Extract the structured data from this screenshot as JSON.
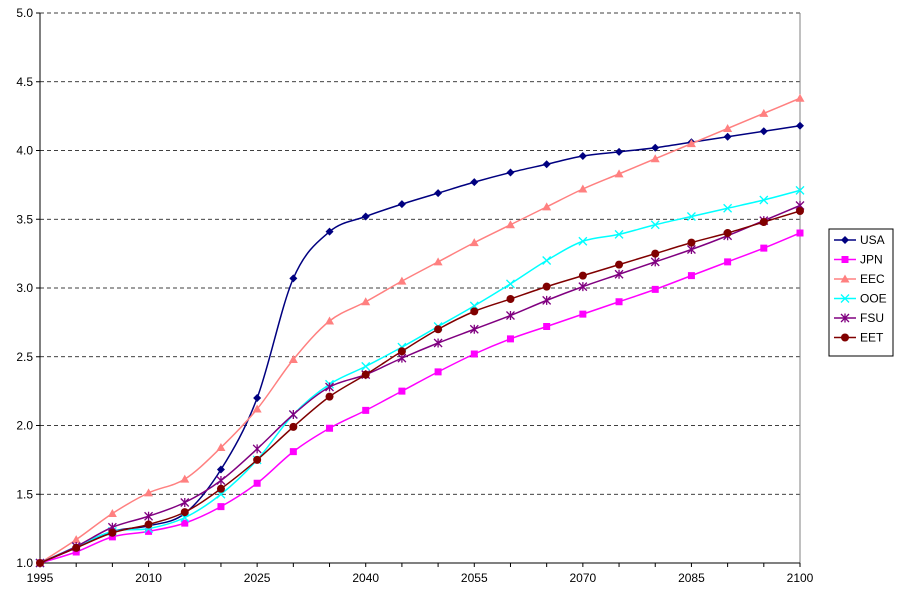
{
  "chart_data": {
    "type": "line",
    "title": "",
    "xlabel": "",
    "ylabel": "",
    "x": [
      1995,
      2000,
      2005,
      2010,
      2015,
      2020,
      2025,
      2030,
      2035,
      2040,
      2045,
      2050,
      2055,
      2060,
      2065,
      2070,
      2075,
      2080,
      2085,
      2090,
      2095,
      2100
    ],
    "x_ticks": [
      "1995",
      "2010",
      "2025",
      "2040",
      "2055",
      "2070",
      "2085",
      "2100"
    ],
    "x_tick_values": [
      1995,
      2010,
      2025,
      2040,
      2055,
      2070,
      2085,
      2100
    ],
    "xlim": [
      1995,
      2100
    ],
    "ylim": [
      1.0,
      5.0
    ],
    "y_ticks": [
      "1.0",
      "1.5",
      "2.0",
      "2.5",
      "3.0",
      "3.5",
      "4.0",
      "4.5",
      "5.0"
    ],
    "y_tick_values": [
      1.0,
      1.5,
      2.0,
      2.5,
      3.0,
      3.5,
      4.0,
      4.5,
      5.0
    ],
    "grid": "horizontal dashed",
    "legend_position": "right",
    "series": [
      {
        "name": "USA",
        "color": "#000080",
        "marker": "diamond",
        "values": [
          1.0,
          1.11,
          1.23,
          1.27,
          1.36,
          1.68,
          2.2,
          3.07,
          3.41,
          3.52,
          3.61,
          3.69,
          3.77,
          3.84,
          3.9,
          3.96,
          3.99,
          4.02,
          4.06,
          4.1,
          4.14,
          4.18
        ]
      },
      {
        "name": "JPN",
        "color": "#ff00ff",
        "marker": "square",
        "values": [
          1.0,
          1.08,
          1.19,
          1.23,
          1.29,
          1.41,
          1.58,
          1.81,
          1.98,
          2.11,
          2.25,
          2.39,
          2.52,
          2.63,
          2.72,
          2.81,
          2.9,
          2.99,
          3.09,
          3.19,
          3.29,
          3.4
        ]
      },
      {
        "name": "EEC",
        "color": "#ff8080",
        "marker": "triangle",
        "values": [
          1.0,
          1.17,
          1.36,
          1.51,
          1.61,
          1.84,
          2.12,
          2.48,
          2.76,
          2.9,
          3.05,
          3.19,
          3.33,
          3.46,
          3.59,
          3.72,
          3.83,
          3.94,
          4.05,
          4.16,
          4.27,
          4.38
        ]
      },
      {
        "name": "OOE",
        "color": "#00ffff",
        "marker": "x",
        "values": [
          1.0,
          1.12,
          1.23,
          1.25,
          1.33,
          1.5,
          1.75,
          2.08,
          2.3,
          2.43,
          2.57,
          2.72,
          2.87,
          3.03,
          3.2,
          3.34,
          3.39,
          3.46,
          3.52,
          3.58,
          3.64,
          3.71
        ]
      },
      {
        "name": "FSU",
        "color": "#800080",
        "marker": "asterisk",
        "values": [
          1.0,
          1.12,
          1.26,
          1.34,
          1.44,
          1.6,
          1.83,
          2.08,
          2.28,
          2.37,
          2.49,
          2.6,
          2.7,
          2.8,
          2.91,
          3.01,
          3.1,
          3.19,
          3.28,
          3.38,
          3.49,
          3.6
        ]
      },
      {
        "name": "EET",
        "color": "#800000",
        "marker": "circle",
        "values": [
          1.0,
          1.11,
          1.22,
          1.28,
          1.37,
          1.54,
          1.75,
          1.99,
          2.21,
          2.37,
          2.54,
          2.7,
          2.83,
          2.92,
          3.01,
          3.09,
          3.17,
          3.25,
          3.33,
          3.4,
          3.48,
          3.56
        ]
      }
    ]
  }
}
